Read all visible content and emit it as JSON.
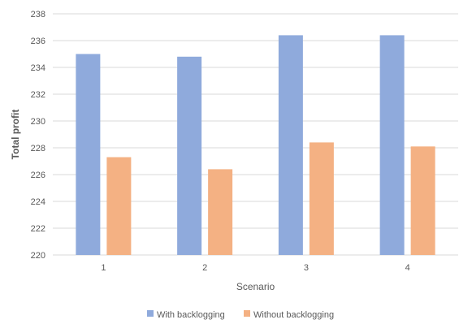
{
  "chart_data": {
    "type": "bar",
    "categories": [
      "1",
      "2",
      "3",
      "4"
    ],
    "series": [
      {
        "name": "With backlogging",
        "color": "#8faadc",
        "values": [
          235.0,
          234.8,
          236.4,
          236.4
        ]
      },
      {
        "name": "Without backlogging",
        "color": "#f4b183",
        "values": [
          227.3,
          226.4,
          228.4,
          228.1
        ]
      }
    ],
    "title": "",
    "xlabel": "Scenario",
    "ylabel": "Total profit",
    "ylim": [
      220,
      238
    ],
    "yticks": [
      220,
      222,
      224,
      226,
      228,
      230,
      232,
      234,
      236,
      238
    ],
    "grid": true,
    "legend_position": "bottom"
  }
}
